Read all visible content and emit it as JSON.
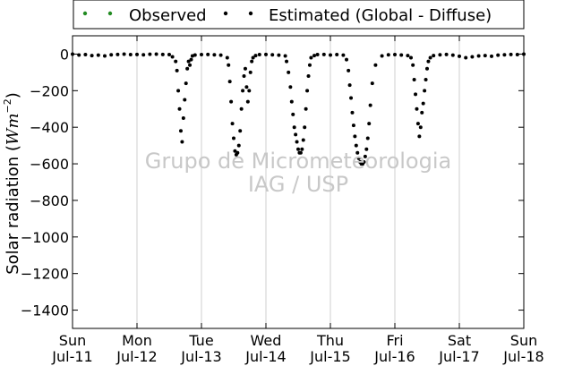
{
  "chart_data": {
    "type": "scatter",
    "ylabel_text": "Solar radiation (",
    "ylabel_unit": "Wm",
    "ylabel_exp": "−2",
    "ylabel_close": ")",
    "ylim": [
      -1500,
      100
    ],
    "yticks": [
      0,
      -200,
      -400,
      -600,
      -800,
      -1000,
      -1200,
      -1400
    ],
    "ytick_labels": [
      "0",
      "−200",
      "−400",
      "−600",
      "−800",
      "−1000",
      "−1200",
      "−1400"
    ],
    "xlim": [
      0,
      7
    ],
    "xticks": [
      0,
      1,
      2,
      3,
      4,
      5,
      6,
      7
    ],
    "xtick_day": [
      "Sun",
      "Mon",
      "Tue",
      "Wed",
      "Thu",
      "Fri",
      "Sat",
      "Sun"
    ],
    "xtick_date": [
      "Jul-11",
      "Jul-12",
      "Jul-13",
      "Jul-14",
      "Jul-15",
      "Jul-16",
      "Jul-17",
      "Jul-18"
    ],
    "grid": "vertical",
    "legend_placement": "top-center",
    "series": [
      {
        "name": "Observed",
        "color": "#228b22",
        "x": [],
        "y": []
      },
      {
        "name": "Estimated (Global - Diffuse)",
        "color": "#000000",
        "x": [
          0.0,
          0.1,
          0.2,
          0.3,
          0.4,
          0.5,
          0.6,
          0.7,
          0.8,
          0.9,
          1.0,
          1.1,
          1.2,
          1.3,
          1.4,
          1.5,
          1.55,
          1.6,
          1.62,
          1.64,
          1.66,
          1.68,
          1.7,
          1.72,
          1.74,
          1.76,
          1.78,
          1.8,
          1.82,
          1.84,
          1.86,
          1.9,
          2.0,
          2.1,
          2.2,
          2.3,
          2.4,
          2.42,
          2.44,
          2.46,
          2.48,
          2.5,
          2.52,
          2.54,
          2.56,
          2.58,
          2.6,
          2.62,
          2.64,
          2.66,
          2.68,
          2.7,
          2.72,
          2.74,
          2.76,
          2.78,
          2.8,
          2.84,
          2.9,
          3.0,
          3.1,
          3.2,
          3.3,
          3.32,
          3.35,
          3.38,
          3.4,
          3.42,
          3.44,
          3.46,
          3.48,
          3.5,
          3.52,
          3.54,
          3.56,
          3.58,
          3.6,
          3.62,
          3.64,
          3.66,
          3.68,
          3.7,
          3.75,
          3.8,
          3.9,
          4.0,
          4.1,
          4.2,
          4.25,
          4.28,
          4.3,
          4.32,
          4.34,
          4.36,
          4.38,
          4.4,
          4.42,
          4.44,
          4.46,
          4.48,
          4.5,
          4.52,
          4.54,
          4.56,
          4.58,
          4.6,
          4.62,
          4.65,
          4.7,
          4.8,
          4.9,
          5.0,
          5.1,
          5.2,
          5.25,
          5.28,
          5.3,
          5.32,
          5.34,
          5.36,
          5.38,
          5.4,
          5.42,
          5.44,
          5.46,
          5.48,
          5.5,
          5.52,
          5.55,
          5.6,
          5.7,
          5.8,
          5.9,
          6.0,
          6.1,
          6.2,
          6.3,
          6.4,
          6.5,
          6.6,
          6.7,
          6.8,
          6.9,
          7.0
        ],
        "y": [
          0,
          -5,
          -3,
          -8,
          -6,
          -10,
          -4,
          -2,
          0,
          -3,
          -2,
          -4,
          -1,
          0,
          -2,
          -3,
          -15,
          -40,
          -90,
          -200,
          -300,
          -420,
          -480,
          -350,
          -250,
          -160,
          -80,
          -40,
          -60,
          -30,
          -10,
          -5,
          -3,
          -2,
          -4,
          -6,
          -20,
          -60,
          -150,
          -260,
          -380,
          -460,
          -530,
          -550,
          -540,
          -500,
          -420,
          -300,
          -200,
          -120,
          -80,
          -180,
          -260,
          -200,
          -100,
          -40,
          -20,
          -8,
          -3,
          -2,
          -4,
          -6,
          -10,
          -40,
          -100,
          -180,
          -260,
          -330,
          -400,
          -440,
          -480,
          -520,
          -540,
          -540,
          -520,
          -470,
          -400,
          -300,
          -200,
          -120,
          -60,
          -20,
          -8,
          -3,
          -2,
          -5,
          -3,
          -6,
          -30,
          -90,
          -170,
          -240,
          -320,
          -390,
          -450,
          -500,
          -540,
          -570,
          -590,
          -600,
          -600,
          -590,
          -560,
          -520,
          -460,
          -380,
          -280,
          -160,
          -60,
          -10,
          -4,
          -3,
          -5,
          -8,
          -20,
          -60,
          -140,
          -220,
          -300,
          -380,
          -450,
          -400,
          -320,
          -270,
          -200,
          -140,
          -80,
          -40,
          -20,
          -8,
          -4,
          -2,
          -6,
          -12,
          -20,
          -15,
          -10,
          -8,
          -12,
          -6,
          -4,
          -2,
          -3,
          0
        ]
      }
    ]
  },
  "watermark": {
    "line1": "Grupo de Micrometeorologia",
    "line2": "IAG / USP"
  }
}
